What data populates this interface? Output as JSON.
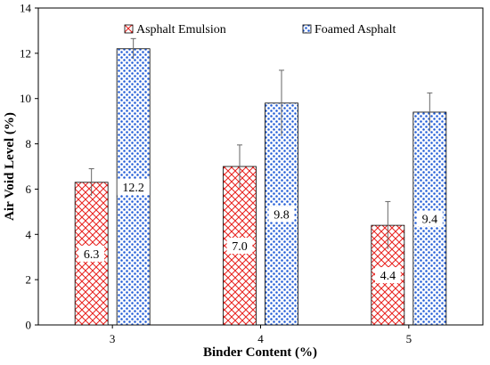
{
  "chart_data": {
    "type": "bar",
    "xlabel": "Binder Content (%)",
    "ylabel": "Air Void Level (%)",
    "categories": [
      "3",
      "4",
      "5"
    ],
    "ylim": [
      0,
      14
    ],
    "yticks": [
      "0",
      "2",
      "4",
      "6",
      "8",
      "10",
      "12",
      "14"
    ],
    "grid": false,
    "legend_position": "top",
    "series": [
      {
        "name": "Asphalt Emulsion",
        "values": [
          6.3,
          7.0,
          4.4
        ],
        "error": [
          0.6,
          0.95,
          1.05
        ],
        "labels": [
          "6.3",
          "7.0",
          "4.4"
        ],
        "pattern": "crosshatch",
        "color": "#e8201c"
      },
      {
        "name": "Foamed Asphalt",
        "values": [
          12.2,
          9.8,
          9.4
        ],
        "error": [
          0.45,
          1.45,
          0.85
        ],
        "labels": [
          "12.2",
          "9.8",
          "9.4"
        ],
        "pattern": "dots",
        "color": "#1f5bd6"
      }
    ]
  }
}
